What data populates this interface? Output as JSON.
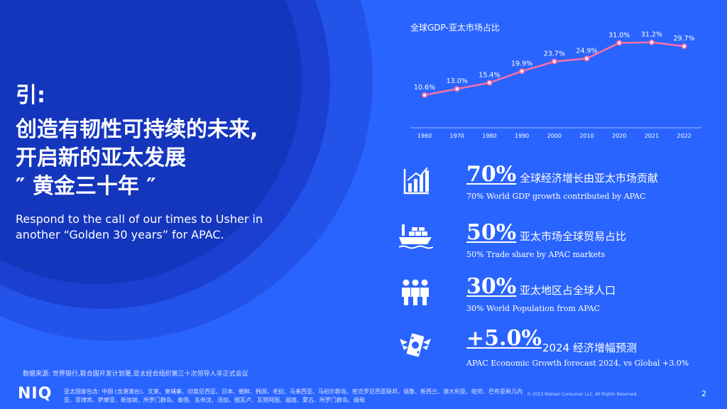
{
  "title": {
    "line1": "引:",
    "line2": "创造有韧性可持续的未来,",
    "line3": "开启新的亚太发展",
    "line4": "″ 黄金三十年 ″"
  },
  "subtitle": "Respond to the call of our times to Usher in another “Golden 30 years” for APAC.",
  "chart_data": {
    "type": "line",
    "title": "全球GDP-亚太市场占比",
    "x": [
      "1960",
      "1970",
      "1980",
      "1990",
      "2000",
      "2010",
      "2020",
      "2021",
      "2022"
    ],
    "values": [
      10.6,
      13.0,
      15.4,
      19.9,
      23.7,
      24.9,
      31.0,
      31.2,
      29.7
    ],
    "labels": [
      "10.6%",
      "13.0%",
      "15.4%",
      "19.9%",
      "23.7%",
      "24.9%",
      "31.0%",
      "31.2%",
      "29.7%"
    ],
    "ylim": [
      0,
      35
    ],
    "grid": false,
    "line_color": "#ff6fa3"
  },
  "stats": [
    {
      "big": "70%",
      "cn": "全球经济增长由亚太市场贡献",
      "en": "70% World GDP growth contributed by APAC",
      "icon": "bar-chart-icon"
    },
    {
      "big": "50%",
      "cn": "亚太市场全球贸易占比",
      "en": "50% Trade share by APAC markets",
      "icon": "cargo-ship-icon"
    },
    {
      "big": "30%",
      "cn": "亚太地区占全球人口",
      "en": "30% World Population from APAC",
      "icon": "people-icon"
    },
    {
      "big": "+5.0%",
      "cn": "2024 经济增幅预测",
      "en": "APAC Economic Growth forecast 2024, vs Global +3.0%",
      "icon": "flying-money-icon"
    }
  ],
  "source": "数据来源: 世界银行,联合国开发计划署,亚太经合组织第三十次领导人非正式会议",
  "logo": "NIQ",
  "footnote": "亚太国家包含: 中国 (含港澳台)、文莱、柬埔寨、印度尼西亚、日本、朝鲜、韩国、老挝、马来西亚、马绍尔群岛、密克罗尼西亚联邦、瑙鲁、新西兰、澳大利亚、帕劳、巴布亚新几内亚、菲律宾、萨摩亚、新加坡、所罗门群岛、泰国、东帝汶、汤加、图瓦卢、瓦努阿图、越南、蒙古、所罗门群岛、缅甸",
  "copyright": "© 2023 Nielsen Consumer LLC. All Rights Reserved.",
  "page_number": "2"
}
